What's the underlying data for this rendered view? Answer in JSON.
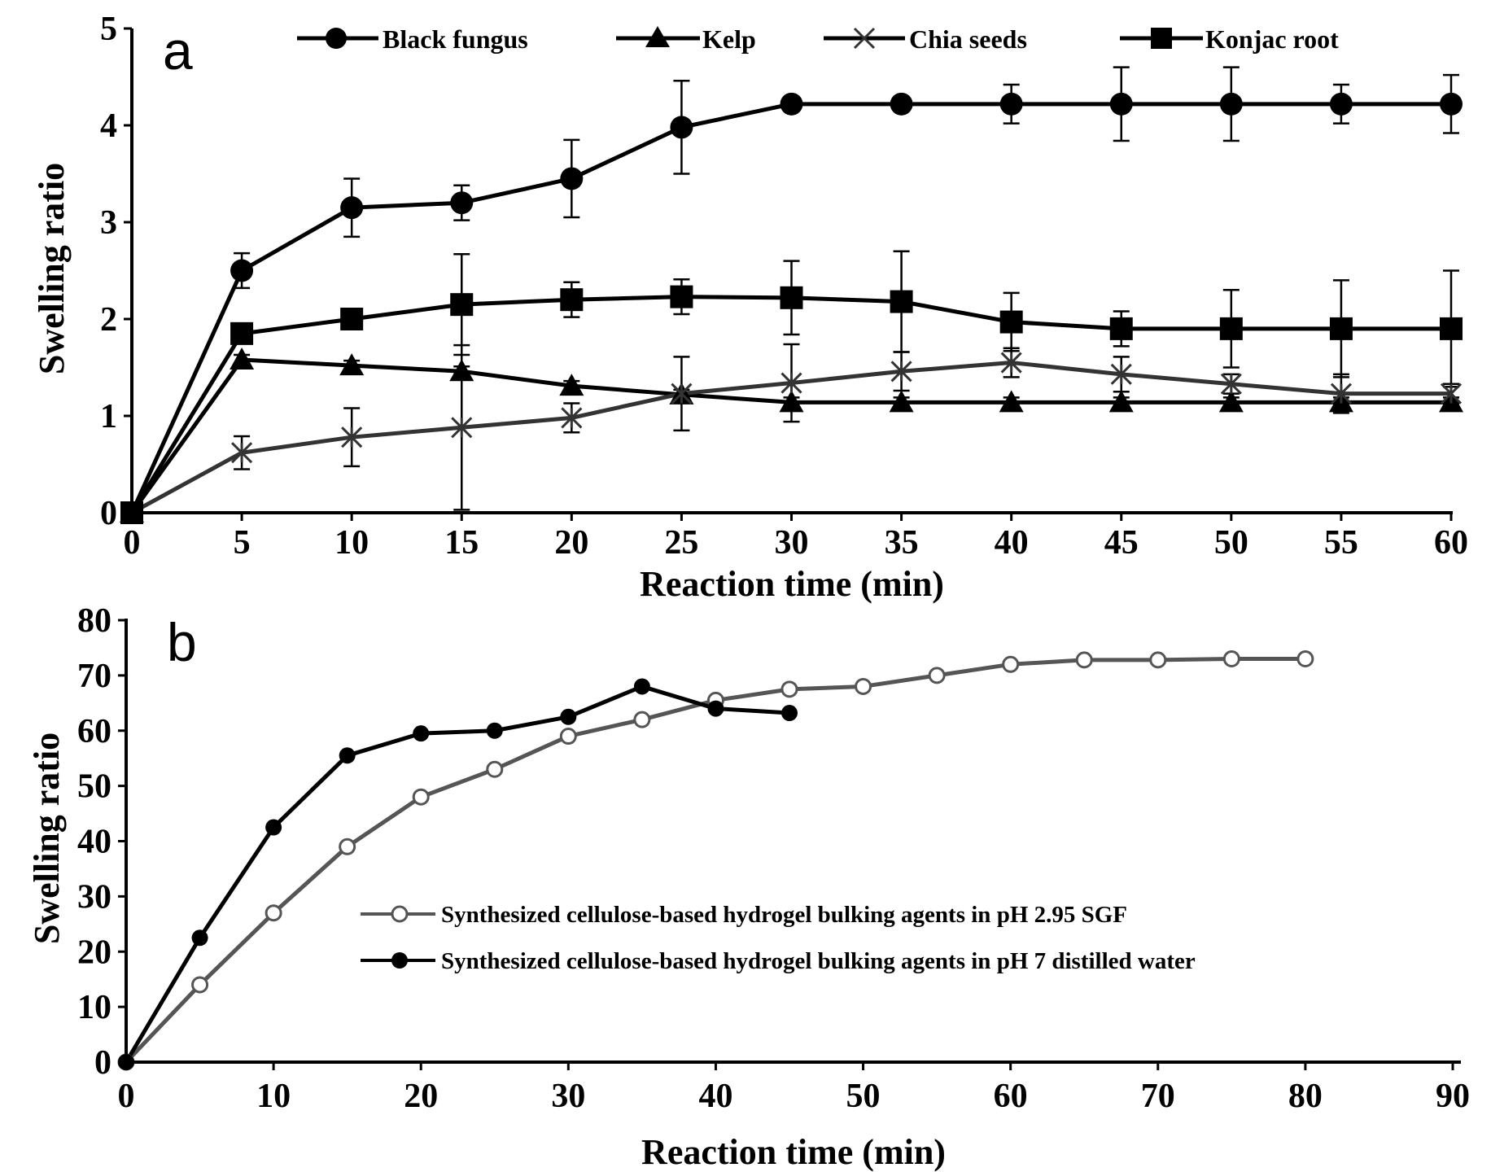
{
  "chart_data": [
    {
      "panel": "a",
      "type": "line",
      "xlabel": "Reaction time (min)",
      "ylabel": "Swelling ratio",
      "xlim": [
        0,
        60
      ],
      "ylim": [
        0,
        5
      ],
      "xticks": [
        0,
        5,
        10,
        15,
        20,
        25,
        30,
        35,
        40,
        45,
        50,
        55,
        60
      ],
      "yticks": [
        0,
        1,
        2,
        3,
        4,
        5
      ],
      "legend_position": "top",
      "x": [
        0,
        5,
        10,
        15,
        20,
        25,
        30,
        35,
        40,
        45,
        50,
        55,
        60
      ],
      "series": [
        {
          "name": "Black fungus",
          "marker": "circle",
          "color": "#000000",
          "values": [
            0,
            2.5,
            3.15,
            3.2,
            3.45,
            3.98,
            4.22,
            4.22,
            4.22,
            4.22,
            4.22,
            4.22,
            4.22
          ],
          "errors": [
            0,
            0.18,
            0.3,
            0.18,
            0.4,
            0.48,
            0.05,
            0.05,
            0.2,
            0.38,
            0.38,
            0.2,
            0.3
          ]
        },
        {
          "name": "Kelp",
          "marker": "triangle",
          "color": "#000000",
          "values": [
            0,
            1.58,
            1.52,
            1.46,
            1.31,
            1.22,
            1.14,
            1.14,
            1.14,
            1.14,
            1.14,
            1.14,
            1.14
          ],
          "errors": [
            0,
            0.05,
            0.05,
            0.05,
            0.05,
            0.05,
            0.05,
            0.05,
            0.05,
            0.05,
            0.05,
            0.05,
            0.05
          ]
        },
        {
          "name": "Chia seeds",
          "marker": "x",
          "color": "#333333",
          "values": [
            0,
            0.62,
            0.78,
            0.88,
            0.98,
            1.23,
            1.34,
            1.46,
            1.55,
            1.43,
            1.33,
            1.23,
            1.23
          ],
          "errors": [
            0,
            0.17,
            0.3,
            0.85,
            0.15,
            0.38,
            0.4,
            0.2,
            0.15,
            0.18,
            0.1,
            0.2,
            0.1
          ]
        },
        {
          "name": "Konjac root",
          "marker": "square",
          "color": "#000000",
          "values": [
            0,
            1.85,
            2.0,
            2.15,
            2.2,
            2.23,
            2.22,
            2.18,
            1.97,
            1.9,
            1.9,
            1.9,
            1.9
          ],
          "errors": [
            0,
            0.1,
            0.1,
            0.52,
            0.18,
            0.18,
            0.38,
            0.52,
            0.3,
            0.18,
            0.4,
            0.5,
            0.6
          ]
        }
      ]
    },
    {
      "panel": "b",
      "type": "line",
      "xlabel": "Reaction time (min)",
      "ylabel": "Swelling ratio",
      "xlim": [
        0,
        90
      ],
      "ylim": [
        0,
        80
      ],
      "xticks": [
        0,
        10,
        20,
        30,
        40,
        50,
        60,
        70,
        80,
        90
      ],
      "yticks": [
        0,
        10,
        20,
        30,
        40,
        50,
        60,
        70,
        80
      ],
      "legend_position": "middle",
      "series": [
        {
          "name": "Synthesized cellulose-based hydrogel bulking agents in pH 2.95 SGF",
          "marker": "open-circle",
          "color": "#555555",
          "x": [
            0,
            5,
            10,
            15,
            20,
            25,
            30,
            35,
            40,
            45,
            50,
            55,
            60,
            65,
            70,
            75,
            80
          ],
          "values": [
            0,
            14,
            27,
            39,
            48,
            53,
            59,
            62,
            65.5,
            67.5,
            68,
            70,
            72,
            72.8,
            72.8,
            73,
            73
          ]
        },
        {
          "name": "Synthesized cellulose-based hydrogel bulking agents in pH 7 distilled water",
          "marker": "filled-circle",
          "color": "#000000",
          "x": [
            0,
            5,
            10,
            15,
            20,
            25,
            30,
            35,
            40,
            45
          ],
          "values": [
            0,
            22.5,
            42.5,
            55.5,
            59.5,
            60,
            62.5,
            68,
            64,
            63.2
          ]
        }
      ]
    }
  ],
  "panels": {
    "a": {
      "label": "a",
      "ylabel": "Swelling ratio",
      "xlabel": "Reaction time (min)",
      "legend": [
        "Black fungus",
        "Kelp",
        "Chia seeds",
        "Konjac root"
      ]
    },
    "b": {
      "label": "b",
      "ylabel": "Swelling ratio",
      "xlabel": "Reaction time (min)",
      "legend": [
        "Synthesized cellulose-based hydrogel bulking agents in pH 2.95 SGF",
        "Synthesized cellulose-based hydrogel bulking agents in pH 7 distilled water"
      ]
    }
  }
}
